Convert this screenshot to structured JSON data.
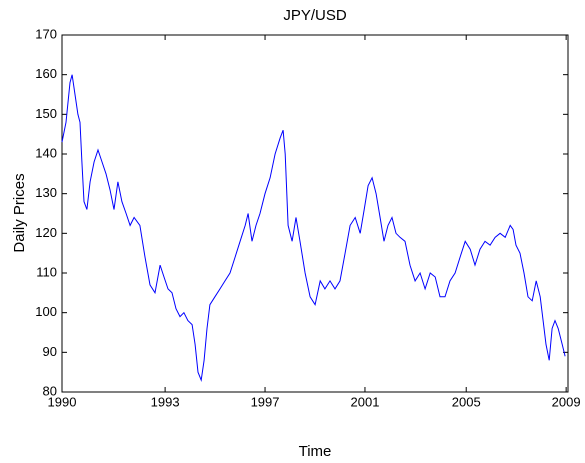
{
  "chart_data": {
    "type": "line",
    "title": "JPY/USD",
    "x_label": "Time",
    "y_label": "Daily Prices",
    "x": [
      1990.0,
      1990.15,
      1990.3,
      1990.38,
      1990.49,
      1990.6,
      1990.68,
      1990.75,
      1990.83,
      1990.94,
      1991.06,
      1991.21,
      1991.36,
      1991.51,
      1991.66,
      1991.81,
      1991.96,
      1992.11,
      1992.26,
      1992.42,
      1992.57,
      1992.72,
      1992.94,
      1993.13,
      1993.32,
      1993.51,
      1993.7,
      1993.85,
      1994.0,
      1994.15,
      1994.3,
      1994.45,
      1994.6,
      1994.75,
      1994.91,
      1995.02,
      1995.13,
      1995.25,
      1995.36,
      1995.47,
      1995.58,
      1995.77,
      1995.96,
      1996.15,
      1996.34,
      1996.53,
      1996.72,
      1996.91,
      1997.02,
      1997.17,
      1997.32,
      1997.47,
      1997.66,
      1997.85,
      1998.04,
      1998.23,
      1998.34,
      1998.42,
      1998.53,
      1998.68,
      1998.83,
      1998.98,
      1999.17,
      1999.36,
      1999.55,
      1999.74,
      1999.92,
      2000.11,
      2000.3,
      2000.49,
      2000.68,
      2000.87,
      2001.06,
      2001.25,
      2001.4,
      2001.55,
      2001.7,
      2001.85,
      2002.0,
      2002.15,
      2002.3,
      2002.45,
      2002.6,
      2002.75,
      2002.94,
      2003.13,
      2003.32,
      2003.51,
      2003.7,
      2003.89,
      2004.08,
      2004.26,
      2004.45,
      2004.64,
      2004.83,
      2005.02,
      2005.21,
      2005.4,
      2005.58,
      2005.77,
      2005.96,
      2006.15,
      2006.34,
      2006.53,
      2006.72,
      2006.91,
      2007.02,
      2007.13,
      2007.28,
      2007.43,
      2007.58,
      2007.74,
      2007.89,
      2008.04,
      2008.15,
      2008.26,
      2008.38,
      2008.49,
      2008.6,
      2008.72,
      2008.87,
      2008.98
    ],
    "series": [
      {
        "name": "JPY/USD",
        "color": "#0000ff",
        "values": [
          143,
          148,
          158,
          160,
          155,
          150,
          148,
          138,
          128,
          126,
          133,
          138,
          141,
          138,
          135,
          131,
          126,
          133,
          128,
          125,
          122,
          124,
          122,
          114,
          107,
          105,
          112,
          109,
          106,
          105,
          101,
          99,
          100,
          98,
          97,
          92,
          85,
          83,
          88,
          96,
          102,
          104,
          106,
          108,
          110,
          114,
          118,
          122,
          125,
          118,
          122,
          125,
          130,
          134,
          140,
          144,
          146,
          140,
          122,
          118,
          124,
          118,
          110,
          104,
          102,
          108,
          106,
          108,
          106,
          108,
          115,
          122,
          124,
          120,
          126,
          132,
          134,
          130,
          124,
          118,
          122,
          124,
          120,
          119,
          118,
          112,
          108,
          110,
          106,
          110,
          109,
          104,
          104,
          108,
          110,
          114,
          118,
          116,
          112,
          116,
          118,
          117,
          119,
          120,
          119,
          122,
          121,
          117,
          115,
          110,
          104,
          103,
          108,
          104,
          98,
          92,
          88,
          96,
          98,
          96,
          92,
          89
        ]
      }
    ],
    "xlim": [
      1990,
      2009.09
    ],
    "ylim": [
      80,
      170
    ],
    "xticks": [
      {
        "value": 1990,
        "label": "1990"
      },
      {
        "value": 1993.89,
        "label": "1993"
      },
      {
        "value": 1997.66,
        "label": "1997"
      },
      {
        "value": 2001.43,
        "label": "2001"
      },
      {
        "value": 2005.25,
        "label": "2005"
      },
      {
        "value": 2009.02,
        "label": "2009"
      }
    ],
    "yticks": [
      80,
      90,
      100,
      110,
      120,
      130,
      140,
      150,
      160,
      170
    ]
  }
}
